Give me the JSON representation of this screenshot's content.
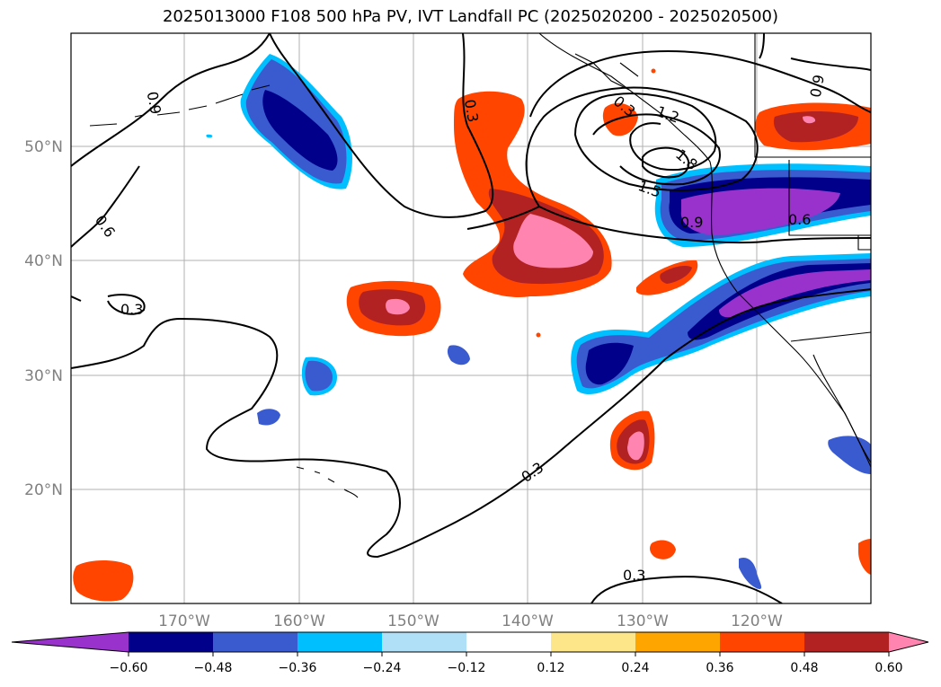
{
  "title": "2025013000 F108 500 hPa PV, IVT Landfall PC (2025020200 - 2025020500)",
  "map": {
    "lat_labels": [
      "50°N",
      "40°N",
      "30°N",
      "20°N"
    ],
    "lon_labels": [
      "170°W",
      "160°W",
      "150°W",
      "140°W",
      "130°W",
      "120°W"
    ],
    "contour_labels": [
      "0.9",
      "0.3",
      "0.6",
      "0.3",
      "0.3",
      "0.3",
      "1.2",
      "1.8",
      "1.5",
      "0.9",
      "0.6",
      "0.9",
      "0.3"
    ],
    "grid": true
  },
  "colorbar": {
    "levels": [
      "−0.60",
      "−0.48",
      "−0.36",
      "−0.24",
      "−0.12",
      "0.12",
      "0.24",
      "0.36",
      "0.48",
      "0.60"
    ],
    "colors": [
      "#9932cc",
      "#00008b",
      "#3a5bd0",
      "#00bfff",
      "#b0e0f7",
      "#ffffff",
      "#fde68a",
      "#ffa500",
      "#ff4500",
      "#b22222",
      "#ff85b0"
    ],
    "extend": "both"
  }
}
